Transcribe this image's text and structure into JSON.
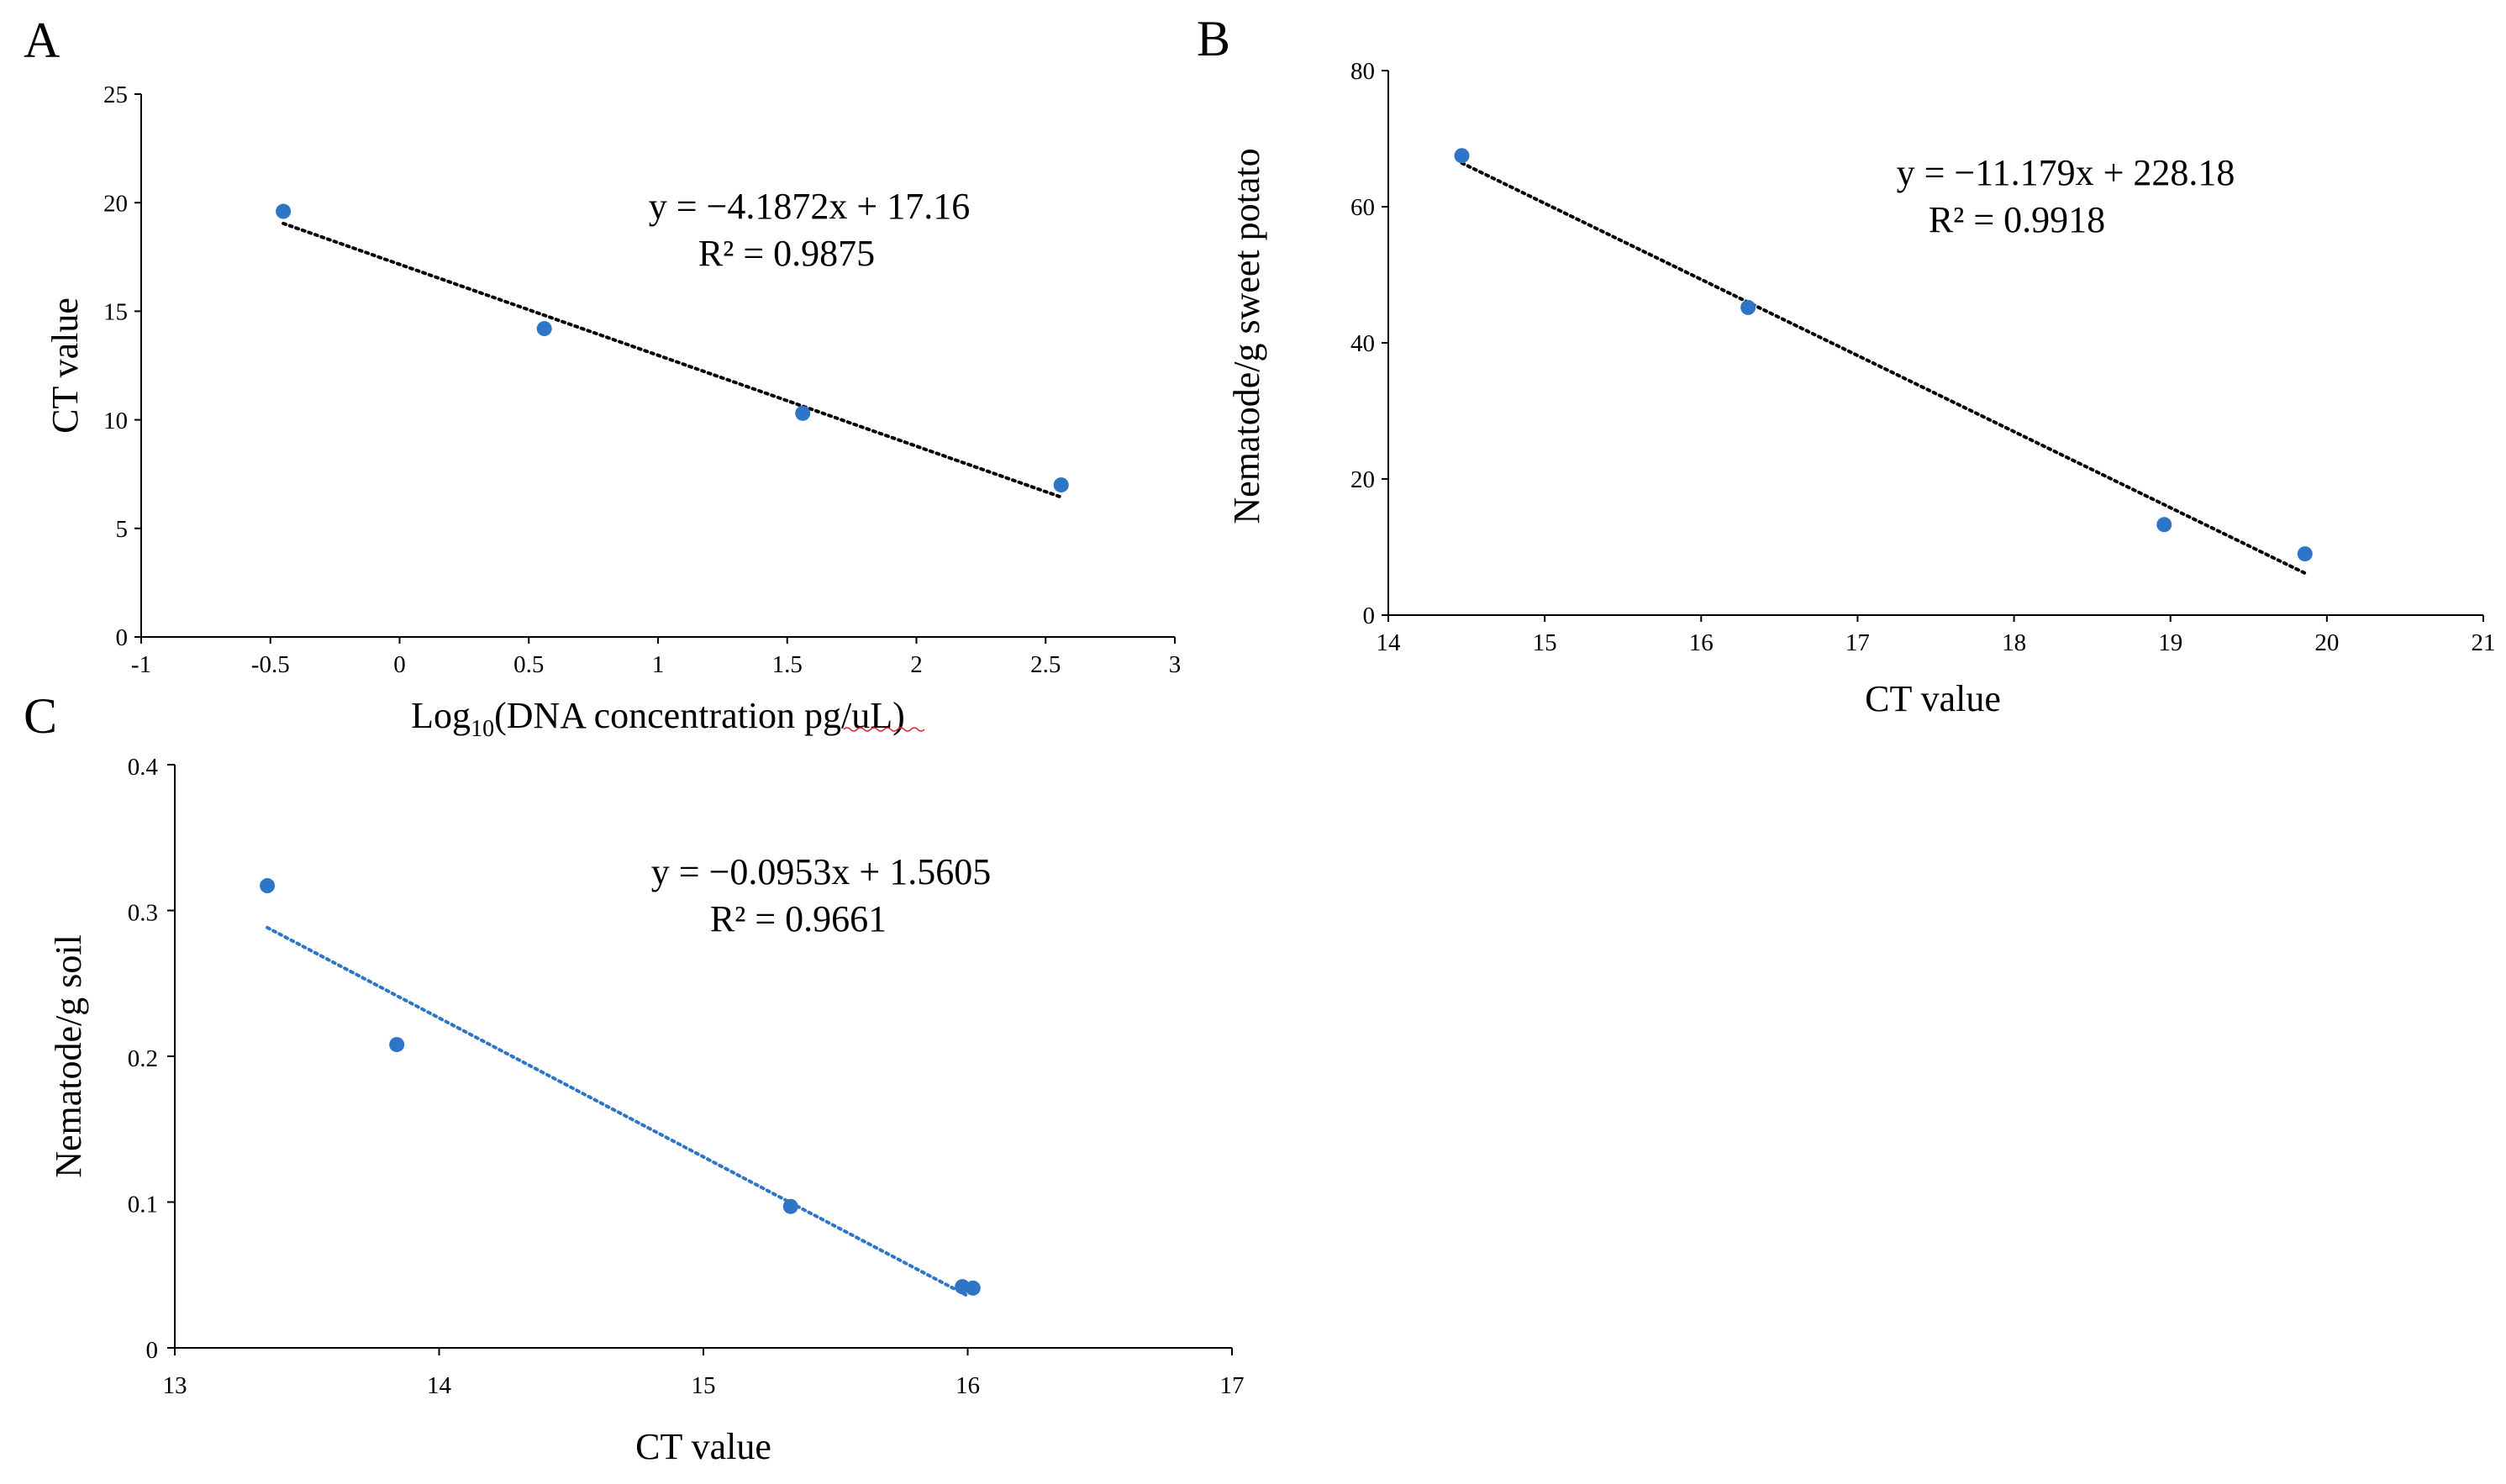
{
  "chart_data": [
    {
      "id": "A",
      "type": "scatter",
      "panel_label": "A",
      "xlabel_main": "Log",
      "xlabel_sub": "10",
      "xlabel_rest": "(DNA concentration pg/uL)",
      "ylabel": "CT value",
      "xlim": [
        -1,
        3
      ],
      "ylim": [
        0,
        25
      ],
      "xticks": [
        -1,
        -0.5,
        0,
        0.5,
        1,
        1.5,
        2,
        2.5,
        3
      ],
      "xtick_labels": [
        "-1",
        "-0.5",
        "0",
        "0.5",
        "1",
        "1.5",
        "2",
        "2.5",
        "3"
      ],
      "yticks": [
        0,
        5,
        10,
        15,
        20,
        25
      ],
      "ytick_labels": [
        "0",
        "5",
        "10",
        "15",
        "20",
        "25"
      ],
      "points": [
        {
          "x": -0.45,
          "y": 19.6
        },
        {
          "x": 0.56,
          "y": 14.2
        },
        {
          "x": 1.56,
          "y": 10.3
        },
        {
          "x": 2.56,
          "y": 7.0
        }
      ],
      "trendline": {
        "slope": -4.1872,
        "intercept": 17.16,
        "x_range": [
          -0.45,
          2.56
        ]
      },
      "equation": "y = −4.1872x + 17.16",
      "r_squared": "R² = 0.9875",
      "point_color": "#2e75c8",
      "line_color": "#000000"
    },
    {
      "id": "B",
      "type": "scatter",
      "panel_label": "B",
      "xlabel": "CT value",
      "ylabel": "Nematode/g sweet potato",
      "xlim": [
        14,
        21
      ],
      "ylim": [
        0,
        80
      ],
      "xticks": [
        14,
        15,
        16,
        17,
        18,
        19,
        20,
        21
      ],
      "xtick_labels": [
        "14",
        "15",
        "16",
        "17",
        "18",
        "19",
        "20",
        "21"
      ],
      "yticks": [
        0,
        20,
        40,
        60,
        80
      ],
      "ytick_labels": [
        "0",
        "20",
        "40",
        "60",
        "80"
      ],
      "points": [
        {
          "x": 14.47,
          "y": 67.5
        },
        {
          "x": 16.3,
          "y": 45.2
        },
        {
          "x": 18.96,
          "y": 13.3
        },
        {
          "x": 19.86,
          "y": 9.0
        }
      ],
      "trendline": {
        "slope": -11.179,
        "intercept": 228.18,
        "x_range": [
          14.47,
          19.86
        ]
      },
      "equation": "y = −11.179x + 228.18",
      "r_squared": "R² = 0.9918",
      "point_color": "#2e75c8",
      "line_color": "#000000"
    },
    {
      "id": "C",
      "type": "scatter",
      "panel_label": "C",
      "xlabel": "CT value",
      "ylabel": "Nematode/g soil",
      "xlim": [
        13,
        17
      ],
      "ylim": [
        0,
        0.4
      ],
      "xticks": [
        13,
        14,
        15,
        16,
        17
      ],
      "xtick_labels": [
        "13",
        "14",
        "15",
        "16",
        "17"
      ],
      "yticks": [
        0,
        0.1,
        0.2,
        0.3,
        0.4
      ],
      "ytick_labels": [
        "0",
        "0.1",
        "0.2",
        "0.3",
        "0.4"
      ],
      "points": [
        {
          "x": 13.35,
          "y": 0.317
        },
        {
          "x": 13.84,
          "y": 0.208
        },
        {
          "x": 15.33,
          "y": 0.097
        },
        {
          "x": 15.98,
          "y": 0.042
        },
        {
          "x": 16.02,
          "y": 0.041
        }
      ],
      "trendline": {
        "slope": -0.0953,
        "intercept": 1.5605,
        "x_range": [
          13.35,
          16.0
        ]
      },
      "equation": "y = −0.0953x + 1.5605",
      "r_squared": "R² = 0.9661",
      "point_color": "#2e75c8",
      "line_color": "#2e75c8"
    }
  ]
}
